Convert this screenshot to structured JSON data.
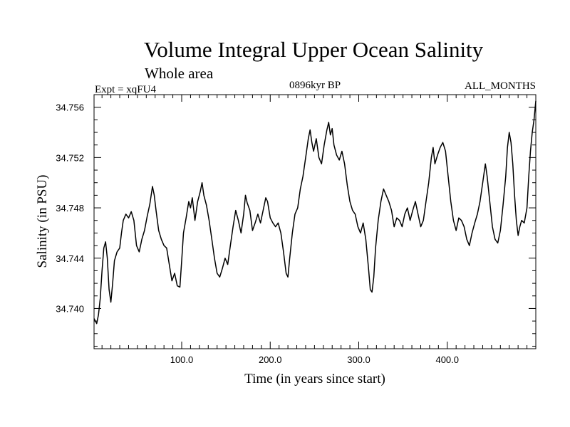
{
  "chart_data": {
    "type": "line",
    "title": "Volume Integral Upper Ocean Salinity",
    "subtitle": "Whole area",
    "experiment": "Expt = xqFU4",
    "period": "0896kyr BP",
    "months": "ALL_MONTHS",
    "xlabel": "Time (in years since start)",
    "ylabel": "Salinity (in PSU)",
    "xlim": [
      1,
      500
    ],
    "ylim": [
      34.7368,
      34.757
    ],
    "xticks": [
      100,
      200,
      300,
      400
    ],
    "xtick_labels": [
      "100.0",
      "200.0",
      "300.0",
      "400.0"
    ],
    "yticks": [
      34.74,
      34.744,
      34.748,
      34.752,
      34.756
    ],
    "ytick_labels": [
      "34.740",
      "34.744",
      "34.748",
      "34.752",
      "34.756"
    ],
    "series": [
      {
        "name": "Salinity",
        "points": [
          [
            1,
            34.7392
          ],
          [
            4,
            34.7388
          ],
          [
            6,
            34.7395
          ],
          [
            8,
            34.7408
          ],
          [
            10,
            34.743
          ],
          [
            12,
            34.7448
          ],
          [
            14,
            34.7453
          ],
          [
            16,
            34.744
          ],
          [
            18,
            34.7415
          ],
          [
            20,
            34.7405
          ],
          [
            22,
            34.742
          ],
          [
            24,
            34.7438
          ],
          [
            27,
            34.7445
          ],
          [
            30,
            34.7448
          ],
          [
            32,
            34.746
          ],
          [
            34,
            34.747
          ],
          [
            37,
            34.7475
          ],
          [
            40,
            34.7472
          ],
          [
            43,
            34.7477
          ],
          [
            46,
            34.747
          ],
          [
            49,
            34.745
          ],
          [
            52,
            34.7445
          ],
          [
            55,
            34.7455
          ],
          [
            58,
            34.7462
          ],
          [
            61,
            34.7473
          ],
          [
            64,
            34.7483
          ],
          [
            67,
            34.7497
          ],
          [
            69,
            34.749
          ],
          [
            71,
            34.7478
          ],
          [
            74,
            34.7462
          ],
          [
            77,
            34.7455
          ],
          [
            80,
            34.745
          ],
          [
            83,
            34.7448
          ],
          [
            86,
            34.7435
          ],
          [
            89,
            34.7422
          ],
          [
            92,
            34.7428
          ],
          [
            95,
            34.7418
          ],
          [
            98,
            34.7417
          ],
          [
            100,
            34.7438
          ],
          [
            102,
            34.746
          ],
          [
            105,
            34.7472
          ],
          [
            108,
            34.7485
          ],
          [
            110,
            34.748
          ],
          [
            112,
            34.7488
          ],
          [
            115,
            34.747
          ],
          [
            118,
            34.7485
          ],
          [
            121,
            34.7493
          ],
          [
            123,
            34.75
          ],
          [
            125,
            34.749
          ],
          [
            128,
            34.7482
          ],
          [
            131,
            34.747
          ],
          [
            134,
            34.7455
          ],
          [
            137,
            34.744
          ],
          [
            140,
            34.7428
          ],
          [
            143,
            34.7425
          ],
          [
            146,
            34.7432
          ],
          [
            149,
            34.744
          ],
          [
            152,
            34.7435
          ],
          [
            155,
            34.745
          ],
          [
            158,
            34.7465
          ],
          [
            161,
            34.7478
          ],
          [
            164,
            34.747
          ],
          [
            167,
            34.746
          ],
          [
            170,
            34.7475
          ],
          [
            172,
            34.749
          ],
          [
            174,
            34.7484
          ],
          [
            177,
            34.7478
          ],
          [
            180,
            34.7462
          ],
          [
            183,
            34.7468
          ],
          [
            186,
            34.7475
          ],
          [
            189,
            34.7468
          ],
          [
            192,
            34.7478
          ],
          [
            195,
            34.7488
          ],
          [
            197,
            34.7485
          ],
          [
            200,
            34.7472
          ],
          [
            203,
            34.7468
          ],
          [
            206,
            34.7465
          ],
          [
            209,
            34.7468
          ],
          [
            212,
            34.746
          ],
          [
            215,
            34.7445
          ],
          [
            218,
            34.7428
          ],
          [
            220,
            34.7425
          ],
          [
            222,
            34.744
          ],
          [
            225,
            34.746
          ],
          [
            228,
            34.7475
          ],
          [
            231,
            34.748
          ],
          [
            234,
            34.7495
          ],
          [
            237,
            34.7505
          ],
          [
            240,
            34.752
          ],
          [
            243,
            34.7535
          ],
          [
            245,
            34.7542
          ],
          [
            247,
            34.7532
          ],
          [
            249,
            34.7525
          ],
          [
            252,
            34.7535
          ],
          [
            255,
            34.752
          ],
          [
            258,
            34.7515
          ],
          [
            261,
            34.753
          ],
          [
            264,
            34.7542
          ],
          [
            266,
            34.7548
          ],
          [
            268,
            34.7538
          ],
          [
            270,
            34.7543
          ],
          [
            272,
            34.753
          ],
          [
            275,
            34.7522
          ],
          [
            278,
            34.7518
          ],
          [
            281,
            34.7525
          ],
          [
            284,
            34.7515
          ],
          [
            287,
            34.7498
          ],
          [
            290,
            34.7485
          ],
          [
            293,
            34.7478
          ],
          [
            296,
            34.7475
          ],
          [
            299,
            34.7465
          ],
          [
            302,
            34.746
          ],
          [
            305,
            34.7468
          ],
          [
            308,
            34.7455
          ],
          [
            311,
            34.7432
          ],
          [
            313,
            34.7415
          ],
          [
            315,
            34.7413
          ],
          [
            317,
            34.7425
          ],
          [
            319,
            34.7448
          ],
          [
            322,
            34.747
          ],
          [
            325,
            34.7485
          ],
          [
            328,
            34.7495
          ],
          [
            331,
            34.749
          ],
          [
            334,
            34.7485
          ],
          [
            337,
            34.7478
          ],
          [
            340,
            34.7465
          ],
          [
            343,
            34.7472
          ],
          [
            346,
            34.747
          ],
          [
            349,
            34.7465
          ],
          [
            352,
            34.7475
          ],
          [
            355,
            34.748
          ],
          [
            358,
            34.747
          ],
          [
            361,
            34.7478
          ],
          [
            364,
            34.7485
          ],
          [
            367,
            34.7475
          ],
          [
            370,
            34.7465
          ],
          [
            373,
            34.747
          ],
          [
            376,
            34.7485
          ],
          [
            379,
            34.75
          ],
          [
            382,
            34.752
          ],
          [
            384,
            34.7528
          ],
          [
            386,
            34.7515
          ],
          [
            389,
            34.7522
          ],
          [
            392,
            34.7528
          ],
          [
            395,
            34.7532
          ],
          [
            398,
            34.7525
          ],
          [
            401,
            34.7505
          ],
          [
            404,
            34.7485
          ],
          [
            407,
            34.747
          ],
          [
            410,
            34.7462
          ],
          [
            413,
            34.7472
          ],
          [
            416,
            34.747
          ],
          [
            419,
            34.7465
          ],
          [
            422,
            34.7455
          ],
          [
            425,
            34.745
          ],
          [
            428,
            34.746
          ],
          [
            431,
            34.7468
          ],
          [
            434,
            34.7475
          ],
          [
            437,
            34.7485
          ],
          [
            440,
            34.75
          ],
          [
            443,
            34.7515
          ],
          [
            445,
            34.7505
          ],
          [
            448,
            34.7485
          ],
          [
            451,
            34.7465
          ],
          [
            454,
            34.7455
          ],
          [
            457,
            34.7452
          ],
          [
            460,
            34.7462
          ],
          [
            463,
            34.7482
          ],
          [
            466,
            34.7505
          ],
          [
            468,
            34.7528
          ],
          [
            470,
            34.754
          ],
          [
            472,
            34.7532
          ],
          [
            474,
            34.7515
          ],
          [
            476,
            34.749
          ],
          [
            478,
            34.747
          ],
          [
            480,
            34.7458
          ],
          [
            482,
            34.7465
          ],
          [
            484,
            34.747
          ],
          [
            487,
            34.7468
          ],
          [
            490,
            34.748
          ],
          [
            492,
            34.7505
          ],
          [
            494,
            34.7525
          ],
          [
            496,
            34.754
          ],
          [
            498,
            34.755
          ],
          [
            500,
            34.7565
          ]
        ]
      }
    ]
  }
}
